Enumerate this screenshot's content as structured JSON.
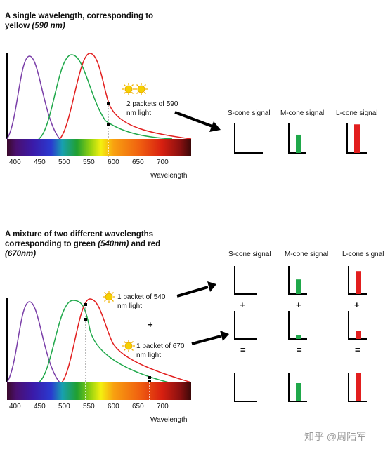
{
  "panel1": {
    "title_main": "A single wavelength, corresponding to yellow ",
    "title_em": "(590 nm)",
    "note": "2 packets of 590 nm light",
    "ticks": [
      "400",
      "450",
      "500",
      "550",
      "600",
      "650",
      "700"
    ],
    "axis_label": "Wavelength",
    "cone_labels": [
      "S-cone signal",
      "M-cone signal",
      "L-cone signal"
    ],
    "signals": {
      "S": 0,
      "M": 0.62,
      "L": 0.97
    }
  },
  "panel2": {
    "title_line1": "A mixture of two different wavelengths",
    "title_line2_pre": "corresponding to green ",
    "title_line2_em": "(540nm)",
    "title_line2_post": " and red",
    "title_line3_em": "(670nm)",
    "note1": "1 packet of 540 nm light",
    "note2": "1 packet of 670 nm light",
    "plus": "+",
    "equals": "=",
    "ticks": [
      "400",
      "450",
      "500",
      "550",
      "600",
      "650",
      "700"
    ],
    "axis_label": "Wavelength",
    "cone_labels": [
      "S-cone signal",
      "M-cone signal",
      "L-cone signal"
    ],
    "row1": {
      "S": 0,
      "M": 0.52,
      "L": 0.82
    },
    "row2": {
      "S": 0,
      "M": 0.13,
      "L": 0.28
    },
    "row3": {
      "S": 0,
      "M": 0.65,
      "L": 1.0
    }
  },
  "colors": {
    "S": "#7a3ea8",
    "M": "#1fa84a",
    "L": "#e21e1e"
  },
  "watermark": "知乎 @周陆军"
}
